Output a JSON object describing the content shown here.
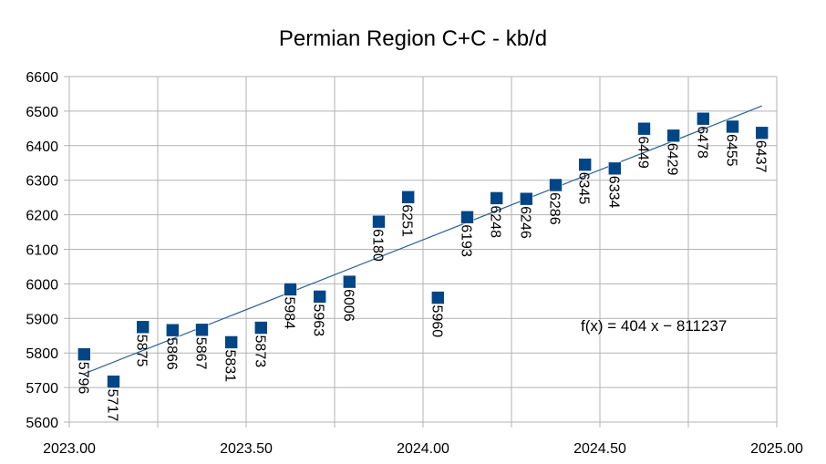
{
  "chart_data": {
    "type": "scatter",
    "title": "Permian Region C+C - kb/d",
    "xlabel": "",
    "ylabel": "",
    "xlim": [
      2023.0,
      2025.0
    ],
    "ylim": [
      5600,
      6600
    ],
    "x_ticks": [
      2023.0,
      2023.5,
      2024.0,
      2024.5,
      2025.0
    ],
    "x_tick_labels": [
      "2023.00",
      "2023.50",
      "2024.00",
      "2024.50",
      "2025.00"
    ],
    "x_minor_ticks": [
      2023.25,
      2023.75,
      2024.25,
      2024.75
    ],
    "y_ticks": [
      5600,
      5700,
      5800,
      5900,
      6000,
      6100,
      6200,
      6300,
      6400,
      6500,
      6600
    ],
    "y_tick_labels": [
      "5600",
      "5700",
      "5800",
      "5900",
      "6000",
      "6100",
      "6200",
      "6300",
      "6400",
      "6500",
      "6600"
    ],
    "grid": true,
    "legend": "none",
    "marker_color": "#004586",
    "trendline_color": "#2a6099",
    "points": [
      {
        "x": 2023.042,
        "y": 5796,
        "label": "5796"
      },
      {
        "x": 2023.125,
        "y": 5717,
        "label": "5717"
      },
      {
        "x": 2023.208,
        "y": 5875,
        "label": "5875"
      },
      {
        "x": 2023.292,
        "y": 5866,
        "label": "5866"
      },
      {
        "x": 2023.375,
        "y": 5867,
        "label": "5867"
      },
      {
        "x": 2023.458,
        "y": 5831,
        "label": "5831"
      },
      {
        "x": 2023.542,
        "y": 5873,
        "label": "5873"
      },
      {
        "x": 2023.625,
        "y": 5984,
        "label": "5984"
      },
      {
        "x": 2023.708,
        "y": 5963,
        "label": "5963"
      },
      {
        "x": 2023.792,
        "y": 6006,
        "label": "6006"
      },
      {
        "x": 2023.875,
        "y": 6180,
        "label": "6180"
      },
      {
        "x": 2023.958,
        "y": 6251,
        "label": "6251"
      },
      {
        "x": 2024.042,
        "y": 5960,
        "label": "5960"
      },
      {
        "x": 2024.125,
        "y": 6193,
        "label": "6193"
      },
      {
        "x": 2024.208,
        "y": 6248,
        "label": "6248"
      },
      {
        "x": 2024.292,
        "y": 6246,
        "label": "6246"
      },
      {
        "x": 2024.375,
        "y": 6286,
        "label": "6286"
      },
      {
        "x": 2024.458,
        "y": 6345,
        "label": "6345"
      },
      {
        "x": 2024.542,
        "y": 6334,
        "label": "6334"
      },
      {
        "x": 2024.625,
        "y": 6449,
        "label": "6449"
      },
      {
        "x": 2024.708,
        "y": 6429,
        "label": "6429"
      },
      {
        "x": 2024.792,
        "y": 6478,
        "label": "6478"
      },
      {
        "x": 2024.875,
        "y": 6455,
        "label": "6455"
      },
      {
        "x": 2024.958,
        "y": 6437,
        "label": "6437"
      }
    ],
    "trendline": {
      "equation": "f(x) = 404 x − 811237",
      "x_start": 2023.042,
      "y_start": 5740,
      "x_end": 2024.958,
      "y_end": 6515
    }
  }
}
